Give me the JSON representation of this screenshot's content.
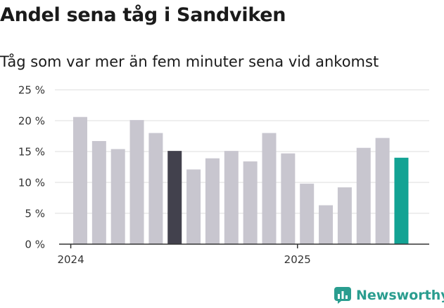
{
  "title": "Andel sena tåg i Sandviken",
  "subtitle": "Tåg som var mer än fem minuter sena vid ankomst",
  "brand": {
    "name": "Newsworthy",
    "icon": "newsworthy-logo-icon",
    "color": "#2a9d8f"
  },
  "chart_data": {
    "type": "bar",
    "title": "Andel sena tåg i Sandviken",
    "subtitle": "Tåg som var mer än fem minuter sena vid ankomst",
    "xlabel": "",
    "ylabel": "",
    "ylim": [
      0,
      25
    ],
    "yticks": [
      0,
      5,
      10,
      15,
      20,
      25
    ],
    "ytick_labels": [
      "0 %",
      "5 %",
      "10 %",
      "15 %",
      "20 %",
      "25 %"
    ],
    "x_ticks": [
      {
        "label": "2024",
        "index": -0.5
      },
      {
        "label": "2025",
        "index": 11.5
      }
    ],
    "grid": true,
    "values": [
      20.6,
      16.7,
      15.4,
      20.1,
      18.0,
      15.1,
      12.1,
      13.9,
      15.1,
      13.4,
      18.0,
      14.7,
      9.8,
      6.3,
      9.2,
      15.6,
      17.2,
      14.0
    ],
    "colors": {
      "default": "#c8c6cf",
      "highlight_dark": "#42414d",
      "highlight_current": "#13a394"
    },
    "highlight_dark_index": 5,
    "highlight_current_index": 17
  }
}
